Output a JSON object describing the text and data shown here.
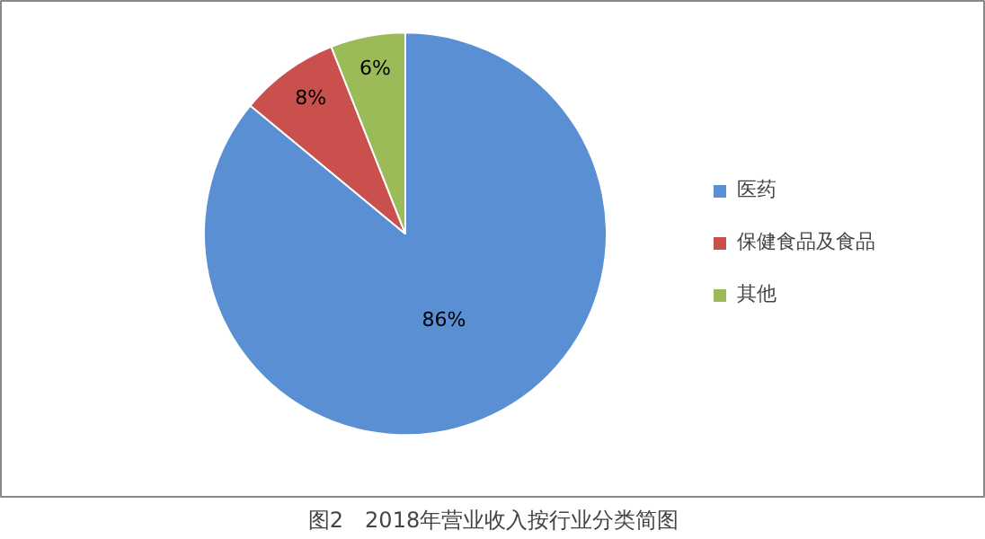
{
  "chart_data": {
    "type": "pie",
    "title": "图2　2018年营业收入按行业分类简图",
    "categories": [
      "医药",
      "保健食品及食品",
      "其他"
    ],
    "values": [
      86,
      8,
      6
    ],
    "colors": [
      "#5a8fd3",
      "#c9504d",
      "#9bbb59"
    ],
    "value_labels": [
      "86%",
      "8%",
      "6%"
    ],
    "legend": "right"
  }
}
